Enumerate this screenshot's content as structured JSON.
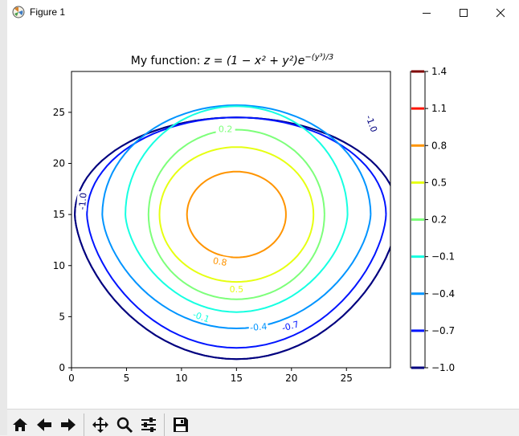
{
  "window": {
    "title": "Figure 1",
    "icon": "matplotlib-icon",
    "controls": [
      "minimize-icon",
      "maximize-icon",
      "close-icon"
    ]
  },
  "toolbar": {
    "buttons": [
      {
        "name": "home-icon"
      },
      {
        "name": "back-icon"
      },
      {
        "name": "forward-icon"
      },
      {
        "name": "pan-icon"
      },
      {
        "name": "zoom-icon"
      },
      {
        "name": "configure-subplots-icon"
      },
      {
        "name": "save-icon"
      }
    ]
  },
  "chart_data": {
    "type": "contour",
    "title_prefix": "My function: ",
    "title_math": {
      "lhs": "z",
      "expr": "(1 − x² + y²)e",
      "exponent": "−(y³)/3"
    },
    "function": "z = (1 - x^2 + y^2) e^(-(y^3)/3)",
    "xlim": [
      0,
      29
    ],
    "ylim": [
      0,
      29
    ],
    "xticks": [
      0,
      5,
      10,
      15,
      20,
      25
    ],
    "yticks": [
      0,
      5,
      10,
      15,
      20,
      25
    ],
    "grid": false,
    "levels": [
      -1.0,
      -0.7,
      -0.4,
      -0.1,
      0.2,
      0.5,
      0.8,
      1.1,
      1.4
    ],
    "colorbar": {
      "ticks": [
        "1.4",
        "1.1",
        "0.8",
        "0.5",
        "0.2",
        "−0.1",
        "−0.4",
        "−0.7",
        "−1.0"
      ],
      "colors": [
        "#7f0000",
        "#ff1300",
        "#ff9400",
        "#e6ff12",
        "#7dff7a",
        "#16ffe1",
        "#0094ff",
        "#0014ff",
        "#00007f"
      ]
    },
    "contours": [
      {
        "level": -1.0,
        "color": "#00007f",
        "center": [
          15,
          15
        ],
        "rx": 14.7,
        "ry": 9.5,
        "bottom_y": 0.85,
        "label": "-1.0",
        "label_pos": [
          1.0,
          16.3
        ],
        "label_angle": -85
      },
      {
        "level": -1.0,
        "color": "#00007f",
        "center": [
          15,
          15
        ],
        "rx": 14.7,
        "ry": 9.5,
        "bottom_y": 0.85,
        "label": "-1.0",
        "label_pos": [
          27.3,
          23.9
        ],
        "label_angle": 70
      },
      {
        "level": -0.7,
        "color": "#0014ff",
        "center": [
          15,
          15
        ],
        "rx": 13.6,
        "ry": 9.5,
        "bottom_y": 1.95,
        "label": "-0.7",
        "label_pos": [
          19.9,
          4.1
        ],
        "label_angle": -15
      },
      {
        "level": -0.4,
        "color": "#0094ff",
        "center": [
          15,
          15
        ],
        "rx": 12.2,
        "ry": 10.7,
        "bottom_y": 3.85,
        "label": "-0.4",
        "label_pos": [
          17.0,
          4.0
        ],
        "label_angle": -5
      },
      {
        "level": -0.1,
        "color": "#16ffe1",
        "center": [
          15,
          15
        ],
        "rx": 10.1,
        "ry": 10.6,
        "bottom_y": 5.45,
        "label": "-0.1",
        "label_pos": [
          11.8,
          5.0
        ],
        "label_angle": 20
      },
      {
        "level": 0.2,
        "color": "#7dff7a",
        "center": [
          15,
          15
        ],
        "rx": 8.0,
        "ry": 8.3,
        "label": "0.2",
        "label_pos": [
          14.0,
          23.4
        ],
        "label_angle": 0
      },
      {
        "level": 0.5,
        "color": "#e6ff12",
        "center": [
          15,
          15
        ],
        "rx": 7.0,
        "ry": 6.6,
        "label": "0.5",
        "label_pos": [
          15.0,
          7.7
        ],
        "label_angle": 0
      },
      {
        "level": 0.8,
        "color": "#ff9400",
        "center": [
          15,
          15
        ],
        "rx": 4.5,
        "ry": 4.2,
        "label": "0.8",
        "label_pos": [
          13.5,
          10.4
        ],
        "label_angle": 10
      }
    ]
  }
}
